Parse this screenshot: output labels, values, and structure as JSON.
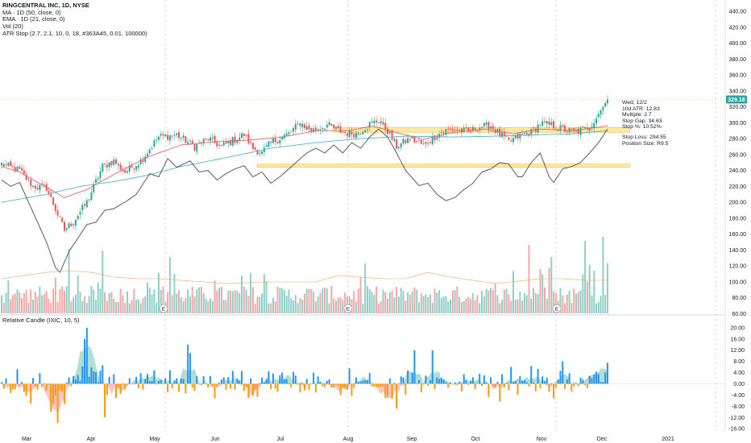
{
  "legend": {
    "title": "RINGCENTRAL INC, 1D, NYSE",
    "lines": [
      "MA · 1D (50, close, 0)",
      "EMA · 1D (21, close, 0)",
      "Vol (20)",
      "ATR Stop (2.7, 2.1, 10, 0, 18, #363A45, 0.01, 100000)"
    ]
  },
  "indicator_legend": "Relative Candle (IXIC, 10, 5)",
  "info_box": {
    "lines_top": [
      "Wed, 12/2",
      "10d ATR: 12.83",
      "Multiple: 2.7",
      "Stop Gap: 34.63",
      "Stop %: 10.52%"
    ],
    "lines_bottom": [
      "Stop Loss: 294.55",
      "Position Size: R9.5"
    ]
  },
  "colors": {
    "up": "#26a69a",
    "down": "#ef5350",
    "vol_up": "#8fd0c6",
    "vol_down": "#f4a7a6",
    "ma50": "#4db6c8",
    "ema21": "#e06666",
    "atr_stop": "#555a66",
    "vol_ma": "#f5a35b",
    "zone_fill": "#fde9a6",
    "zone_edge": "#f3c043",
    "rel_pos": "#2196f3",
    "rel_neg": "#ff9800",
    "area_pos": "#9dd4c8",
    "area_neg": "#f7b8b8",
    "price_tag": "#26a69a"
  },
  "chart_data": [
    {
      "type": "candlestick",
      "title": "RINGCENTRAL INC, 1D, NYSE",
      "x_ticks": [
        "Mar",
        "Apr",
        "May",
        "Jun",
        "Jul",
        "Aug",
        "Sep",
        "Oct",
        "Nov",
        "Dec",
        "2021"
      ],
      "y_ticks": [
        "60.00",
        "80.00",
        "100.00",
        "120.00",
        "140.00",
        "160.00",
        "180.00",
        "200.00",
        "220.00",
        "240.00",
        "260.00",
        "280.00",
        "300.00",
        "320.00",
        "340.00",
        "360.00",
        "380.00",
        "400.00",
        "420.00",
        "440.00"
      ],
      "ylim": [
        60,
        440
      ],
      "last_price": "329.18",
      "earnings_markers": [
        "E",
        "E",
        "E"
      ],
      "close_anchors": [
        [
          0,
          248
        ],
        [
          8,
          240
        ],
        [
          14,
          220
        ],
        [
          20,
          218
        ],
        [
          26,
          178
        ],
        [
          28,
          165
        ],
        [
          32,
          176
        ],
        [
          38,
          200
        ],
        [
          45,
          245
        ],
        [
          50,
          252
        ],
        [
          55,
          238
        ],
        [
          62,
          252
        ],
        [
          70,
          282
        ],
        [
          78,
          285
        ],
        [
          86,
          270
        ],
        [
          92,
          280
        ],
        [
          98,
          270
        ],
        [
          108,
          285
        ],
        [
          112,
          268
        ],
        [
          116,
          262
        ],
        [
          120,
          275
        ],
        [
          128,
          286
        ],
        [
          133,
          300
        ],
        [
          138,
          290
        ],
        [
          145,
          297
        ],
        [
          152,
          288
        ],
        [
          158,
          286
        ],
        [
          164,
          298
        ],
        [
          168,
          303
        ],
        [
          172,
          290
        ],
        [
          176,
          270
        ],
        [
          182,
          280
        ],
        [
          188,
          272
        ],
        [
          194,
          285
        ],
        [
          200,
          292
        ],
        [
          208,
          288
        ],
        [
          212,
          294
        ],
        [
          218,
          296
        ],
        [
          222,
          285
        ],
        [
          226,
          276
        ],
        [
          232,
          285
        ],
        [
          236,
          288
        ],
        [
          240,
          299
        ],
        [
          245,
          297
        ],
        [
          250,
          292
        ],
        [
          255,
          288
        ],
        [
          260,
          292
        ],
        [
          264,
          302
        ],
        [
          268,
          320
        ],
        [
          270,
          329.18
        ]
      ],
      "ma50_anchors": [
        [
          0,
          200
        ],
        [
          20,
          210
        ],
        [
          35,
          220
        ],
        [
          50,
          226
        ],
        [
          65,
          234
        ],
        [
          80,
          245
        ],
        [
          100,
          256
        ],
        [
          120,
          268
        ],
        [
          140,
          275
        ],
        [
          160,
          280
        ],
        [
          180,
          283
        ],
        [
          200,
          282
        ],
        [
          220,
          283
        ],
        [
          240,
          285
        ],
        [
          255,
          286
        ],
        [
          270,
          290
        ]
      ],
      "ema21_anchors": [
        [
          0,
          245
        ],
        [
          8,
          238
        ],
        [
          18,
          222
        ],
        [
          28,
          206
        ],
        [
          38,
          216
        ],
        [
          50,
          235
        ],
        [
          65,
          257
        ],
        [
          80,
          272
        ],
        [
          95,
          276
        ],
        [
          110,
          278
        ],
        [
          125,
          282
        ],
        [
          140,
          290
        ],
        [
          155,
          290
        ],
        [
          165,
          296
        ],
        [
          178,
          286
        ],
        [
          188,
          279
        ],
        [
          200,
          287
        ],
        [
          215,
          292
        ],
        [
          228,
          286
        ],
        [
          240,
          292
        ],
        [
          255,
          290
        ],
        [
          270,
          296
        ]
      ],
      "atr_stop_anchors": [
        [
          0,
          228
        ],
        [
          4,
          220
        ],
        [
          8,
          225
        ],
        [
          12,
          200
        ],
        [
          16,
          175
        ],
        [
          20,
          150
        ],
        [
          24,
          118
        ],
        [
          26,
          112
        ],
        [
          30,
          138
        ],
        [
          34,
          155
        ],
        [
          38,
          172
        ],
        [
          42,
          175
        ],
        [
          46,
          190
        ],
        [
          50,
          192
        ],
        [
          56,
          202
        ],
        [
          60,
          210
        ],
        [
          66,
          236
        ],
        [
          70,
          232
        ],
        [
          74,
          255
        ],
        [
          78,
          244
        ],
        [
          84,
          252
        ],
        [
          88,
          238
        ],
        [
          92,
          240
        ],
        [
          96,
          228
        ],
        [
          100,
          236
        ],
        [
          104,
          242
        ],
        [
          108,
          246
        ],
        [
          112,
          232
        ],
        [
          116,
          238
        ],
        [
          120,
          224
        ],
        [
          124,
          232
        ],
        [
          128,
          242
        ],
        [
          132,
          252
        ],
        [
          136,
          262
        ],
        [
          140,
          268
        ],
        [
          144,
          262
        ],
        [
          148,
          272
        ],
        [
          152,
          262
        ],
        [
          156,
          275
        ],
        [
          160,
          268
        ],
        [
          164,
          282
        ],
        [
          168,
          292
        ],
        [
          172,
          282
        ],
        [
          176,
          262
        ],
        [
          180,
          240
        ],
        [
          186,
          221
        ],
        [
          190,
          224
        ],
        [
          194,
          210
        ],
        [
          198,
          202
        ],
        [
          202,
          206
        ],
        [
          206,
          216
        ],
        [
          210,
          224
        ],
        [
          214,
          238
        ],
        [
          218,
          242
        ],
        [
          222,
          250
        ],
        [
          226,
          248
        ],
        [
          230,
          232
        ],
        [
          232,
          232
        ],
        [
          236,
          250
        ],
        [
          240,
          262
        ],
        [
          244,
          232
        ],
        [
          246,
          225
        ],
        [
          250,
          242
        ],
        [
          254,
          245
        ],
        [
          258,
          250
        ],
        [
          262,
          262
        ],
        [
          266,
          275
        ],
        [
          270,
          292
        ]
      ],
      "zones": [
        {
          "from": 288,
          "to": 294,
          "start": 148,
          "end": 277
        },
        {
          "from": 244,
          "to": 248,
          "start": 114,
          "end": 277
        }
      ],
      "volume_ma_anchors": [
        [
          0,
          104
        ],
        [
          10,
          108
        ],
        [
          20,
          112
        ],
        [
          30,
          114
        ],
        [
          40,
          112
        ],
        [
          50,
          106
        ],
        [
          60,
          104
        ],
        [
          70,
          104
        ],
        [
          80,
          102
        ],
        [
          100,
          98
        ],
        [
          120,
          100
        ],
        [
          140,
          100
        ],
        [
          150,
          108
        ],
        [
          170,
          104
        ],
        [
          180,
          104
        ],
        [
          190,
          112
        ],
        [
          200,
          106
        ],
        [
          220,
          98
        ],
        [
          240,
          104
        ],
        [
          250,
          104
        ],
        [
          260,
          102
        ],
        [
          270,
          102
        ]
      ]
    },
    {
      "type": "bar",
      "title": "Relative Candle (IXIC, 10, 5)",
      "y_ticks": [
        "-16.00",
        "-12.00",
        "-8.00",
        "-4.00",
        "0.00",
        "4.00",
        "8.00",
        "12.00",
        "16.00",
        "20.00"
      ],
      "ylim": [
        -16,
        22
      ]
    }
  ]
}
